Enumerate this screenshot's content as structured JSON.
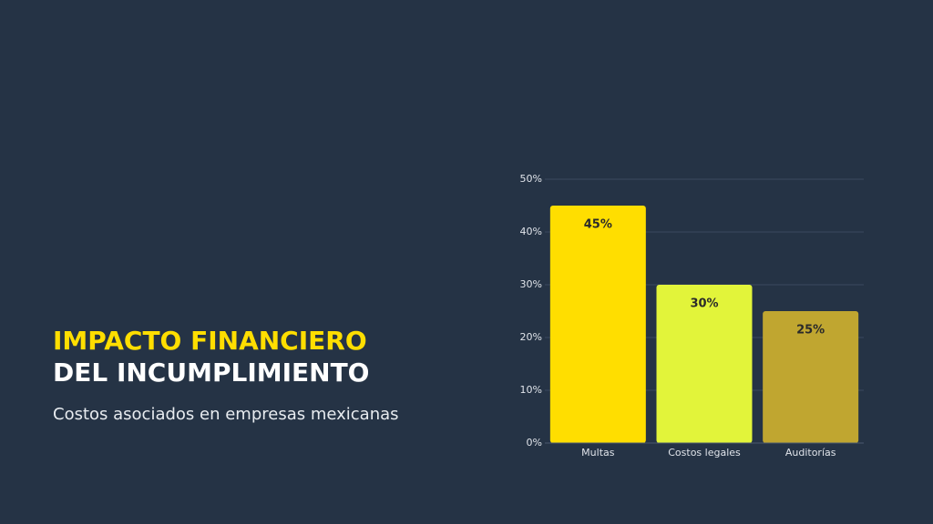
{
  "slide": {
    "title_lines": [
      "IMPACTO FINANCIERO",
      "DEL INCUMPLIMIENTO"
    ],
    "subtitle": "Costos asociados en empresas mexicanas"
  },
  "chart_data": {
    "type": "bar",
    "categories": [
      "Multas",
      "Costos legales",
      "Auditorías"
    ],
    "values": [
      45,
      30,
      25
    ],
    "value_labels": [
      "45%",
      "30%",
      "25%"
    ],
    "colors": [
      "#ffde00",
      "#e2f43a",
      "#c0a630"
    ],
    "ylim": [
      0,
      50
    ],
    "yticks": [
      {
        "value": 0,
        "label": "0%"
      },
      {
        "value": 10,
        "label": "10%"
      },
      {
        "value": 20,
        "label": "20%"
      },
      {
        "value": 30,
        "label": "30%"
      },
      {
        "value": 40,
        "label": "40%"
      },
      {
        "value": 50,
        "label": "50%"
      }
    ],
    "grid": true
  }
}
